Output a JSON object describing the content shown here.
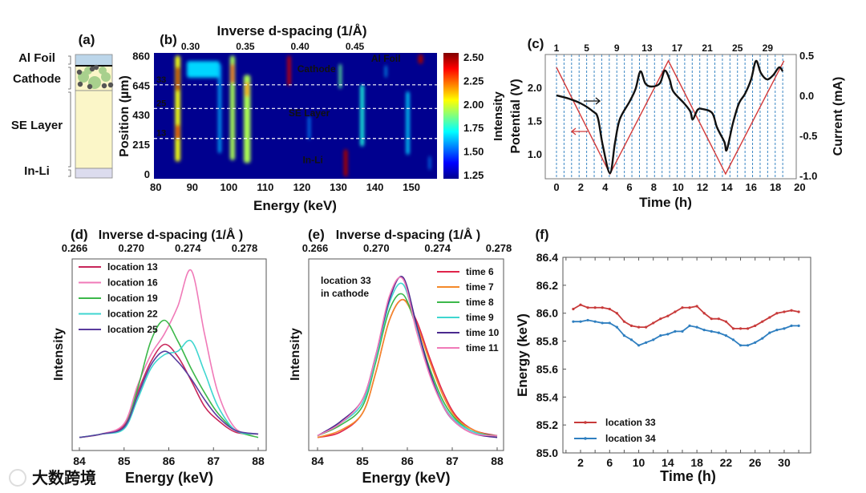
{
  "watermark": "大数跨境",
  "chart_data": [
    {
      "panel": "(a)",
      "type": "diagram",
      "layers": [
        {
          "label": "Al Foil",
          "color": "#bcd6ea"
        },
        {
          "label": "Cathode",
          "color": "#fbf6c8"
        },
        {
          "label": "SE Layer",
          "color": "#fbf6c8"
        },
        {
          "label": "In-Li",
          "color": "#dcdcee"
        }
      ]
    },
    {
      "panel": "(b)",
      "type": "heatmap",
      "xlabel": "Energy (keV)",
      "xlim": [
        79.5,
        157
      ],
      "xticks": [
        80,
        90,
        100,
        110,
        120,
        130,
        140,
        150
      ],
      "top_xlabel": "Inverse d-spacing (1/Å)",
      "top_xticks": [
        "0.30",
        "0.35",
        "0.40",
        "0.45"
      ],
      "top_xtick_energy": [
        89.5,
        104.5,
        119.5,
        134.5
      ],
      "ylabel": "Position (µm)",
      "ylim": [
        -35,
        880
      ],
      "yticks": [
        0,
        215,
        430,
        645,
        860
      ],
      "colorbar": {
        "label": "Intensity",
        "range": [
          1.25,
          2.5
        ],
        "ticks": [
          "1.25",
          "1.50",
          "1.75",
          "2.00",
          "2.25",
          "2.50"
        ]
      },
      "dashed_lines": [
        {
          "label": "33",
          "position": 648
        },
        {
          "label": "25",
          "position": 476
        },
        {
          "label": "13",
          "position": 258
        }
      ],
      "annotations": [
        {
          "text": "Cathode",
          "energy": 124,
          "position": 740
        },
        {
          "text": "Al Foil",
          "energy": 143,
          "position": 815
        },
        {
          "text": "SE Layer",
          "energy": 122,
          "position": 420
        },
        {
          "text": "In-Li",
          "energy": 123,
          "position": 80
        }
      ],
      "bands": [
        {
          "energy": 86,
          "width": 1.4,
          "from": 90,
          "to": 860,
          "intensity": 1.95
        },
        {
          "energy": 86,
          "width": 1.0,
          "from": 600,
          "to": 780,
          "intensity": 2.4
        },
        {
          "energy": 86,
          "width": 1.0,
          "from": 250,
          "to": 360,
          "intensity": 2.35
        },
        {
          "energy": 93,
          "width": 9,
          "from": 700,
          "to": 820,
          "intensity": 1.55
        },
        {
          "energy": 97.5,
          "width": 0.8,
          "from": 150,
          "to": 800,
          "intensity": 1.5
        },
        {
          "energy": 101,
          "width": 1.3,
          "from": 100,
          "to": 860,
          "intensity": 1.85
        },
        {
          "energy": 101,
          "width": 0.9,
          "from": 660,
          "to": 800,
          "intensity": 2.2
        },
        {
          "energy": 105,
          "width": 1.8,
          "from": 80,
          "to": 720,
          "intensity": 1.85
        },
        {
          "energy": 105,
          "width": 1.0,
          "from": 560,
          "to": 670,
          "intensity": 2.1
        },
        {
          "energy": 116.5,
          "width": 0.9,
          "from": 640,
          "to": 860,
          "intensity": 2.4
        },
        {
          "energy": 122,
          "width": 0.6,
          "from": 250,
          "to": 420,
          "intensity": 1.45
        },
        {
          "energy": 130.5,
          "width": 0.7,
          "from": 620,
          "to": 800,
          "intensity": 1.75
        },
        {
          "energy": 132,
          "width": 1.1,
          "from": -20,
          "to": 180,
          "intensity": 2.45
        },
        {
          "energy": 136.5,
          "width": 1.0,
          "from": 200,
          "to": 650,
          "intensity": 1.65
        },
        {
          "energy": 143,
          "width": 0.5,
          "from": 700,
          "to": 790,
          "intensity": 1.5
        },
        {
          "energy": 149,
          "width": 0.9,
          "from": 140,
          "to": 600,
          "intensity": 1.55
        },
        {
          "energy": 152.5,
          "width": 1.3,
          "from": 800,
          "to": 870,
          "intensity": 2.45
        },
        {
          "energy": 155,
          "width": 0.5,
          "from": 30,
          "to": 130,
          "intensity": 1.45
        }
      ]
    },
    {
      "panel": "(c)",
      "type": "line",
      "xlabel": "Time (h)",
      "xlim": [
        -1,
        20
      ],
      "xticks": [
        0,
        2,
        4,
        6,
        8,
        10,
        12,
        14,
        16,
        18,
        20
      ],
      "ylabel_left": "Potential (V)",
      "yticks_left": [
        "1.0",
        "1.5",
        "2.0"
      ],
      "ylabel_right": "Current (mA)",
      "yticks_right": [
        "-1.0",
        "-0.5",
        "0.0",
        "0.5"
      ],
      "top_labels": [
        "1",
        "5",
        "9",
        "13",
        "17",
        "21",
        "25",
        "29"
      ],
      "scan_count": 31,
      "scan_interval_h": 0.62,
      "series": [
        {
          "name": "Potential",
          "axis": "left",
          "color": "#d23a3a",
          "t": [
            0,
            4.4,
            9.2,
            13.9,
            18.7
          ],
          "values": [
            2.3,
            0.7,
            2.4,
            0.7,
            2.4
          ]
        },
        {
          "name": "Current",
          "axis": "right",
          "color": "#111111",
          "t": [
            0,
            1,
            2,
            3,
            3.4,
            3.8,
            4.4,
            4.8,
            5.2,
            6,
            6.5,
            6.9,
            7.3,
            7.8,
            8.5,
            8.9,
            9.3,
            9.6,
            10.5,
            11,
            11.2,
            11.6,
            12,
            12.8,
            13.2,
            13.8,
            14,
            14.5,
            15,
            15.5,
            16,
            16.4,
            16.8,
            17.3,
            17.8,
            18.3,
            18.6
          ],
          "values": [
            0.0,
            -0.04,
            -0.1,
            -0.2,
            -0.28,
            -0.62,
            -0.97,
            -0.6,
            -0.3,
            -0.08,
            0.08,
            0.3,
            0.15,
            0.11,
            0.15,
            0.31,
            0.2,
            0.05,
            -0.1,
            -0.2,
            -0.3,
            -0.18,
            -0.17,
            -0.22,
            -0.4,
            -0.58,
            -0.68,
            -0.35,
            -0.1,
            0.02,
            0.2,
            0.43,
            0.28,
            0.2,
            0.25,
            0.35,
            0.3
          ]
        }
      ]
    },
    {
      "panel": "(d)",
      "type": "line",
      "top_xlabel": "Inverse d-spacing (1/Å )",
      "top_xticks": [
        "0.266",
        "0.270",
        "0.274",
        "0.278"
      ],
      "xlabel": "Energy (keV)",
      "xticks": [
        84,
        85,
        86,
        87,
        88
      ],
      "xlim": [
        83.9,
        88.1
      ],
      "ylabel": "Intensity",
      "ylim": [
        0,
        1.05
      ],
      "x": [
        84,
        84.5,
        85,
        85.3,
        85.6,
        85.9,
        86.2,
        86.5,
        86.8,
        87.1,
        87.5,
        88
      ],
      "series": [
        {
          "name": "location 13",
          "color": "#c8265a",
          "values": [
            0.02,
            0.04,
            0.09,
            0.28,
            0.46,
            0.56,
            0.49,
            0.35,
            0.2,
            0.12,
            0.05,
            0.04
          ]
        },
        {
          "name": "location 16",
          "color": "#f07ab8",
          "values": [
            0.02,
            0.04,
            0.1,
            0.32,
            0.5,
            0.62,
            0.78,
            0.99,
            0.62,
            0.28,
            0.07,
            0.04
          ]
        },
        {
          "name": "location 19",
          "color": "#3cb84a",
          "values": [
            0.02,
            0.04,
            0.08,
            0.3,
            0.58,
            0.7,
            0.58,
            0.42,
            0.28,
            0.16,
            0.06,
            0.02
          ]
        },
        {
          "name": "location 22",
          "color": "#3fd6d0",
          "values": [
            0.02,
            0.04,
            0.07,
            0.24,
            0.42,
            0.5,
            0.52,
            0.58,
            0.4,
            0.2,
            0.06,
            0.04
          ]
        },
        {
          "name": "location 25",
          "color": "#5a3c9e",
          "values": [
            0.02,
            0.04,
            0.08,
            0.26,
            0.44,
            0.52,
            0.46,
            0.36,
            0.24,
            0.14,
            0.06,
            0.04
          ]
        }
      ]
    },
    {
      "panel": "(e)",
      "type": "line",
      "top_xlabel": "Inverse d-spacing (1/Å )",
      "top_xticks": [
        "0.266",
        "0.270",
        "0.274",
        "0.278"
      ],
      "xlabel": "Energy (keV)",
      "xticks": [
        84,
        85,
        86,
        87,
        88
      ],
      "xlim": [
        83.9,
        88.1
      ],
      "ylabel": "Intensity",
      "ylim": [
        0,
        1.05
      ],
      "annotation": [
        "location 33",
        "in cathode"
      ],
      "x": [
        84,
        84.5,
        85,
        85.3,
        85.6,
        85.9,
        86.2,
        86.5,
        86.8,
        87.1,
        87.5,
        88
      ],
      "series": [
        {
          "name": "time 6",
          "color": "#e0244a",
          "values": [
            0.02,
            0.05,
            0.16,
            0.4,
            0.7,
            0.82,
            0.7,
            0.48,
            0.28,
            0.14,
            0.06,
            0.03
          ]
        },
        {
          "name": "time 7",
          "color": "#f4892a",
          "values": [
            0.02,
            0.06,
            0.16,
            0.4,
            0.7,
            0.82,
            0.68,
            0.46,
            0.26,
            0.13,
            0.06,
            0.02
          ]
        },
        {
          "name": "time 8",
          "color": "#3cb84a",
          "values": [
            0.03,
            0.09,
            0.2,
            0.46,
            0.76,
            0.85,
            0.66,
            0.42,
            0.23,
            0.12,
            0.05,
            0.03
          ]
        },
        {
          "name": "time 9",
          "color": "#3fd6d0",
          "values": [
            0.03,
            0.1,
            0.22,
            0.48,
            0.8,
            0.91,
            0.66,
            0.4,
            0.21,
            0.11,
            0.05,
            0.02
          ]
        },
        {
          "name": "time 10",
          "color": "#4a2a8e",
          "values": [
            0.03,
            0.11,
            0.24,
            0.5,
            0.82,
            0.95,
            0.68,
            0.4,
            0.2,
            0.1,
            0.04,
            0.02
          ]
        },
        {
          "name": "time 11",
          "color": "#f07ab8",
          "values": [
            0.03,
            0.1,
            0.24,
            0.5,
            0.84,
            0.94,
            0.64,
            0.38,
            0.2,
            0.1,
            0.04,
            0.03
          ]
        }
      ]
    },
    {
      "panel": "(f)",
      "type": "line",
      "xlabel": "Time (h)",
      "ylabel": "Energy (keV)",
      "xlim": [
        -1,
        34
      ],
      "ylim": [
        85.0,
        86.4
      ],
      "xticks": [
        2,
        6,
        10,
        14,
        18,
        22,
        26,
        30
      ],
      "yticks": [
        "85.0",
        "85.2",
        "85.4",
        "85.6",
        "85.8",
        "86.0",
        "86.2",
        "86.4"
      ],
      "legend": "bottom-left",
      "x": [
        1,
        2,
        3,
        4,
        5,
        6,
        7,
        8,
        9,
        10,
        11,
        12,
        13,
        14,
        15,
        16,
        17,
        18,
        19,
        20,
        21,
        22,
        23,
        24,
        25,
        26,
        27,
        28,
        29,
        30,
        31,
        32
      ],
      "series": [
        {
          "name": "location 33",
          "color": "#c83a3a",
          "values": [
            86.03,
            86.06,
            86.04,
            86.04,
            86.04,
            86.03,
            86.0,
            85.94,
            85.91,
            85.9,
            85.9,
            85.93,
            85.96,
            85.98,
            86.01,
            86.04,
            86.04,
            86.05,
            86.0,
            85.96,
            85.96,
            85.94,
            85.89,
            85.89,
            85.89,
            85.91,
            85.94,
            85.97,
            86.0,
            86.01,
            86.02,
            86.01
          ]
        },
        {
          "name": "location 34",
          "color": "#2f7fc0",
          "values": [
            85.94,
            85.94,
            85.95,
            85.94,
            85.93,
            85.93,
            85.9,
            85.84,
            85.81,
            85.77,
            85.79,
            85.81,
            85.84,
            85.85,
            85.87,
            85.87,
            85.91,
            85.9,
            85.88,
            85.87,
            85.86,
            85.84,
            85.81,
            85.77,
            85.77,
            85.79,
            85.82,
            85.86,
            85.88,
            85.89,
            85.91,
            85.91
          ]
        }
      ]
    }
  ]
}
